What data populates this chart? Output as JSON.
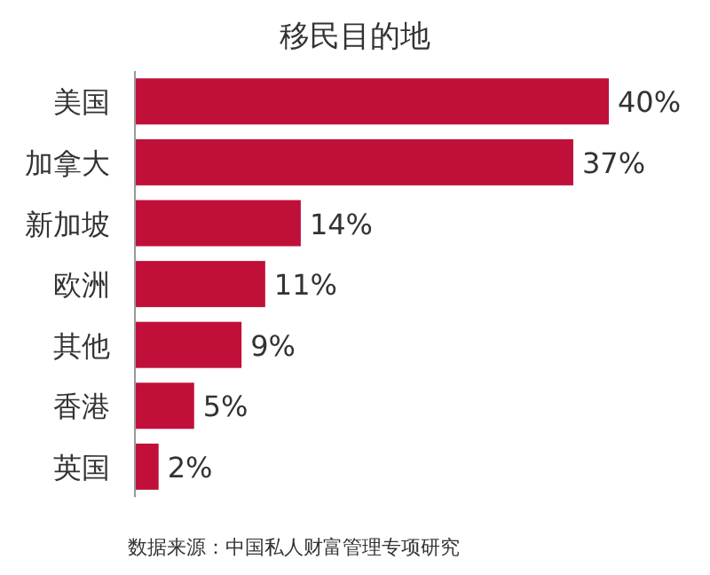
{
  "chart_data": {
    "type": "bar",
    "orientation": "horizontal",
    "title": "移民目的地",
    "categories": [
      "美国",
      "加拿大",
      "新加坡",
      "欧洲",
      "其他",
      "香港",
      "英国"
    ],
    "values": [
      40,
      37,
      14,
      11,
      9,
      5,
      2
    ],
    "value_labels": [
      "40%",
      "37%",
      "14%",
      "11%",
      "9%",
      "5%",
      "2%"
    ],
    "color": "#c0103a",
    "annotations": [
      "数据来源：中国私人财富管理专项研究"
    ]
  }
}
